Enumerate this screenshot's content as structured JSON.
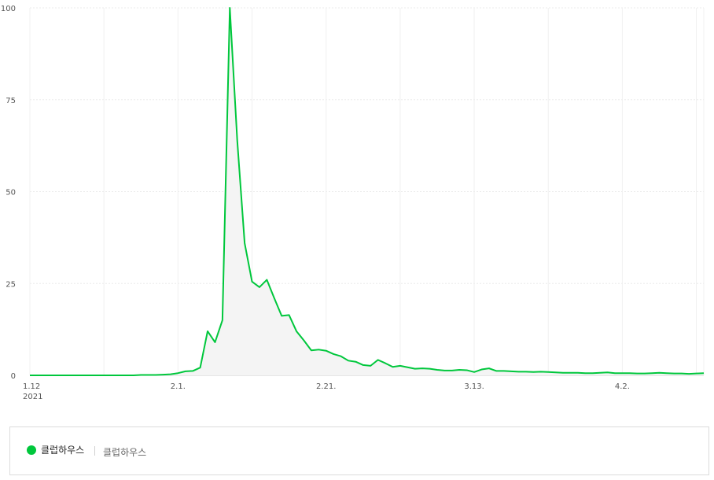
{
  "chart_data": {
    "type": "line",
    "x_start": "1.12",
    "x_year": "2021",
    "x_tick_labels": [
      "1.12",
      "2.1.",
      "2.21.",
      "3.13.",
      "4.2."
    ],
    "y_tick_labels": [
      "0",
      "25",
      "50",
      "75",
      "100"
    ],
    "ylim": [
      0,
      100
    ],
    "grid": true,
    "series": [
      {
        "name": "클럽하우스",
        "color": "#00c73c",
        "values": [
          0,
          0,
          0,
          0,
          0,
          0,
          0,
          0,
          0,
          0,
          0,
          0,
          0,
          0,
          0,
          0.1,
          0.1,
          0.1,
          0.2,
          0.3,
          0.6,
          1.1,
          1.2,
          2.1,
          12,
          9,
          15,
          100,
          64,
          36,
          25.5,
          24,
          26,
          21,
          16.2,
          16.4,
          12,
          9.5,
          6.8,
          7,
          6.7,
          5.8,
          5.2,
          4,
          3.7,
          2.8,
          2.6,
          4.2,
          3.3,
          2.3,
          2.6,
          2.2,
          1.8,
          1.9,
          1.8,
          1.5,
          1.3,
          1.3,
          1.5,
          1.4,
          0.9,
          1.6,
          1.9,
          1.2,
          1.2,
          1.1,
          1,
          1,
          0.9,
          1,
          0.9,
          0.8,
          0.7,
          0.7,
          0.7,
          0.6,
          0.6,
          0.7,
          0.8,
          0.6,
          0.6,
          0.6,
          0.5,
          0.5,
          0.6,
          0.7,
          0.6,
          0.5,
          0.5,
          0.4,
          0.5,
          0.6
        ]
      }
    ]
  },
  "legend": {
    "label": "클럽하우스",
    "sublabel": "클럽하우스",
    "dot_color": "#00c73c"
  }
}
